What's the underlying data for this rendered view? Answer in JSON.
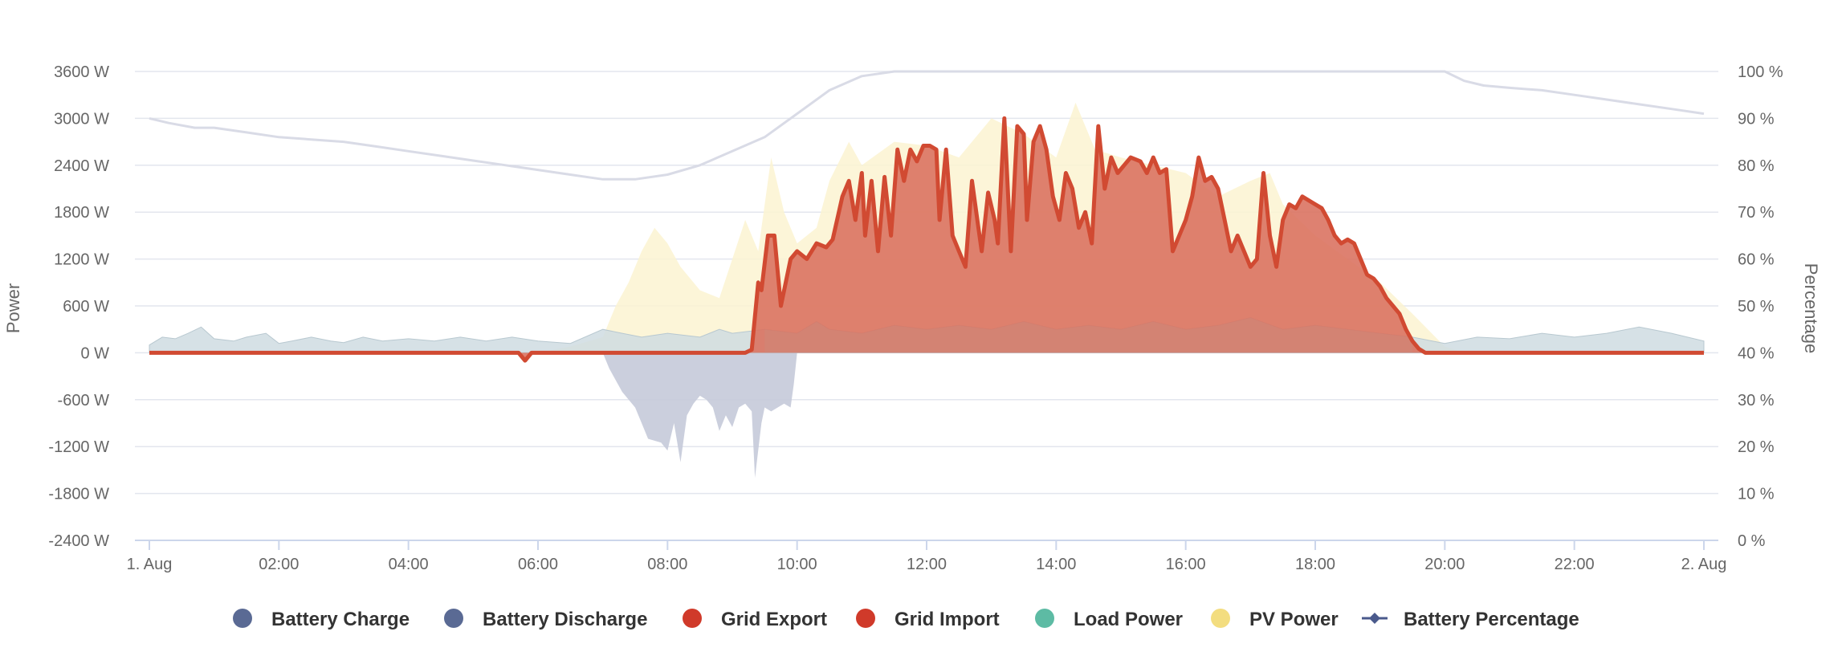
{
  "chart_data": {
    "type": "area",
    "x_axis": {
      "start": "1. Aug 00:00",
      "end": "2. Aug 00:00",
      "tick_labels": [
        "1. Aug",
        "02:00",
        "04:00",
        "06:00",
        "08:00",
        "10:00",
        "12:00",
        "14:00",
        "16:00",
        "18:00",
        "20:00",
        "22:00",
        "2. Aug"
      ],
      "tick_hours": [
        0,
        2,
        4,
        6,
        8,
        10,
        12,
        14,
        16,
        18,
        20,
        22,
        24
      ]
    },
    "y_axis_left": {
      "title": "Power",
      "unit": "W",
      "range": [
        -2400,
        3600
      ],
      "tick_labels": [
        "3600 W",
        "3000 W",
        "2400 W",
        "1800 W",
        "1200 W",
        "600 W",
        "0 W",
        "-600 W",
        "-1200 W",
        "-1800 W",
        "-2400 W"
      ],
      "tick_values": [
        3600,
        3000,
        2400,
        1800,
        1200,
        600,
        0,
        -600,
        -1200,
        -1800,
        -2400
      ]
    },
    "y_axis_right": {
      "title": "Percentage",
      "unit": "%",
      "range": [
        0,
        100
      ],
      "tick_labels": [
        "100 %",
        "90 %",
        "80 %",
        "70 %",
        "60 %",
        "50 %",
        "40 %",
        "30 %",
        "20 %",
        "10 %",
        "0 %"
      ],
      "tick_values": [
        100,
        90,
        80,
        70,
        60,
        50,
        40,
        30,
        20,
        10,
        0
      ]
    },
    "grid": true,
    "legend_position": "bottom",
    "legend": [
      {
        "name": "Battery Charge",
        "color": "#5a6a94",
        "symbol": "circle"
      },
      {
        "name": "Battery Discharge",
        "color": "#5a6a94",
        "symbol": "circle"
      },
      {
        "name": "Grid Export",
        "color": "#d03a2a",
        "symbol": "circle",
        "bold": true
      },
      {
        "name": "Grid Import",
        "color": "#d03a2a",
        "symbol": "circle"
      },
      {
        "name": "Load Power",
        "color": "#5dbba4",
        "symbol": "circle"
      },
      {
        "name": "PV Power",
        "color": "#f3dd7f",
        "symbol": "circle"
      },
      {
        "name": "Battery Percentage",
        "color": "#4a5a8c",
        "symbol": "line-diamond"
      }
    ],
    "series": [
      {
        "name": "Battery Charge / Discharge",
        "color": "#c5cad9",
        "axis": "left",
        "points": [
          [
            7.0,
            0
          ],
          [
            7.1,
            -200
          ],
          [
            7.3,
            -500
          ],
          [
            7.5,
            -700
          ],
          [
            7.6,
            -900
          ],
          [
            7.7,
            -1100
          ],
          [
            7.9,
            -1150
          ],
          [
            8.0,
            -1250
          ],
          [
            8.1,
            -900
          ],
          [
            8.2,
            -1400
          ],
          [
            8.3,
            -800
          ],
          [
            8.4,
            -650
          ],
          [
            8.5,
            -550
          ],
          [
            8.6,
            -600
          ],
          [
            8.7,
            -700
          ],
          [
            8.8,
            -1000
          ],
          [
            8.9,
            -800
          ],
          [
            9.0,
            -950
          ],
          [
            9.1,
            -700
          ],
          [
            9.2,
            -650
          ],
          [
            9.3,
            -750
          ],
          [
            9.35,
            -1600
          ],
          [
            9.45,
            -900
          ],
          [
            9.5,
            -700
          ],
          [
            9.6,
            -750
          ],
          [
            9.7,
            -700
          ],
          [
            9.8,
            -650
          ],
          [
            9.9,
            -700
          ],
          [
            9.95,
            -400
          ],
          [
            10.0,
            0
          ]
        ]
      },
      {
        "name": "Load Power",
        "color": "#cfdce2",
        "axis": "left",
        "points": [
          [
            0,
            100
          ],
          [
            0.2,
            200
          ],
          [
            0.4,
            180
          ],
          [
            0.6,
            250
          ],
          [
            0.8,
            330
          ],
          [
            1.0,
            180
          ],
          [
            1.3,
            150
          ],
          [
            1.5,
            200
          ],
          [
            1.8,
            250
          ],
          [
            2.0,
            120
          ],
          [
            2.2,
            150
          ],
          [
            2.5,
            200
          ],
          [
            2.8,
            150
          ],
          [
            3.0,
            130
          ],
          [
            3.3,
            200
          ],
          [
            3.6,
            150
          ],
          [
            4.0,
            180
          ],
          [
            4.4,
            150
          ],
          [
            4.8,
            200
          ],
          [
            5.2,
            150
          ],
          [
            5.6,
            200
          ],
          [
            6.0,
            150
          ],
          [
            6.5,
            120
          ],
          [
            7.0,
            300
          ],
          [
            7.3,
            250
          ],
          [
            7.6,
            200
          ],
          [
            8.0,
            250
          ],
          [
            8.5,
            200
          ],
          [
            8.8,
            300
          ],
          [
            9.0,
            250
          ],
          [
            9.5,
            300
          ],
          [
            10.0,
            250
          ],
          [
            10.3,
            400
          ],
          [
            10.5,
            300
          ],
          [
            11.0,
            250
          ],
          [
            11.5,
            350
          ],
          [
            12.0,
            300
          ],
          [
            12.5,
            350
          ],
          [
            13.0,
            300
          ],
          [
            13.5,
            400
          ],
          [
            14.0,
            300
          ],
          [
            14.5,
            350
          ],
          [
            15.0,
            300
          ],
          [
            15.5,
            400
          ],
          [
            16.0,
            300
          ],
          [
            16.5,
            350
          ],
          [
            17.0,
            450
          ],
          [
            17.5,
            300
          ],
          [
            18.0,
            350
          ],
          [
            18.5,
            300
          ],
          [
            19.0,
            250
          ],
          [
            19.5,
            200
          ],
          [
            20.0,
            120
          ],
          [
            20.5,
            200
          ],
          [
            21.0,
            180
          ],
          [
            21.5,
            250
          ],
          [
            22.0,
            200
          ],
          [
            22.5,
            250
          ],
          [
            23.0,
            330
          ],
          [
            23.5,
            250
          ],
          [
            24.0,
            150
          ]
        ]
      },
      {
        "name": "PV Power",
        "color": "#fbf3d1",
        "axis": "left",
        "points": [
          [
            6.0,
            0
          ],
          [
            6.5,
            80
          ],
          [
            7.0,
            200
          ],
          [
            7.2,
            600
          ],
          [
            7.4,
            900
          ],
          [
            7.6,
            1300
          ],
          [
            7.8,
            1600
          ],
          [
            8.0,
            1400
          ],
          [
            8.2,
            1100
          ],
          [
            8.5,
            800
          ],
          [
            8.8,
            700
          ],
          [
            9.0,
            1200
          ],
          [
            9.2,
            1700
          ],
          [
            9.4,
            1300
          ],
          [
            9.6,
            2500
          ],
          [
            9.8,
            1800
          ],
          [
            10.0,
            1400
          ],
          [
            10.3,
            1600
          ],
          [
            10.5,
            2200
          ],
          [
            10.8,
            2700
          ],
          [
            11.0,
            2400
          ],
          [
            11.5,
            2700
          ],
          [
            12.0,
            2650
          ],
          [
            12.5,
            2500
          ],
          [
            13.0,
            3000
          ],
          [
            13.5,
            2800
          ],
          [
            14.0,
            2500
          ],
          [
            14.3,
            3200
          ],
          [
            14.6,
            2600
          ],
          [
            15.0,
            2500
          ],
          [
            15.5,
            2400
          ],
          [
            16.0,
            2300
          ],
          [
            16.5,
            2000
          ],
          [
            17.0,
            2200
          ],
          [
            17.3,
            2300
          ],
          [
            17.5,
            1900
          ],
          [
            18.0,
            1500
          ],
          [
            18.5,
            1200
          ],
          [
            19.0,
            900
          ],
          [
            19.5,
            500
          ],
          [
            20.0,
            80
          ],
          [
            20.3,
            0
          ]
        ]
      },
      {
        "name": "Grid Export",
        "color": "#d64b38",
        "axis": "left",
        "points": [
          [
            0,
            0
          ],
          [
            5.7,
            0
          ],
          [
            5.8,
            -100
          ],
          [
            5.9,
            0
          ],
          [
            9.2,
            0
          ],
          [
            9.3,
            40
          ],
          [
            9.4,
            900
          ],
          [
            9.45,
            800
          ],
          [
            9.55,
            1500
          ],
          [
            9.65,
            1500
          ],
          [
            9.75,
            600
          ],
          [
            9.9,
            1200
          ],
          [
            10.0,
            1300
          ],
          [
            10.15,
            1200
          ],
          [
            10.3,
            1400
          ],
          [
            10.45,
            1350
          ],
          [
            10.55,
            1450
          ],
          [
            10.7,
            2000
          ],
          [
            10.8,
            2200
          ],
          [
            10.9,
            1700
          ],
          [
            11.0,
            2300
          ],
          [
            11.05,
            1500
          ],
          [
            11.15,
            2200
          ],
          [
            11.25,
            1300
          ],
          [
            11.35,
            2250
          ],
          [
            11.45,
            1500
          ],
          [
            11.55,
            2600
          ],
          [
            11.65,
            2200
          ],
          [
            11.75,
            2600
          ],
          [
            11.85,
            2450
          ],
          [
            11.95,
            2650
          ],
          [
            12.05,
            2650
          ],
          [
            12.15,
            2600
          ],
          [
            12.2,
            1700
          ],
          [
            12.3,
            2600
          ],
          [
            12.4,
            1500
          ],
          [
            12.5,
            1300
          ],
          [
            12.6,
            1100
          ],
          [
            12.7,
            2200
          ],
          [
            12.8,
            1600
          ],
          [
            12.85,
            1300
          ],
          [
            12.95,
            2050
          ],
          [
            13.05,
            1700
          ],
          [
            13.1,
            1400
          ],
          [
            13.2,
            3000
          ],
          [
            13.3,
            1300
          ],
          [
            13.4,
            2900
          ],
          [
            13.5,
            2800
          ],
          [
            13.55,
            1700
          ],
          [
            13.65,
            2700
          ],
          [
            13.75,
            2900
          ],
          [
            13.85,
            2600
          ],
          [
            13.95,
            2000
          ],
          [
            14.05,
            1700
          ],
          [
            14.15,
            2300
          ],
          [
            14.25,
            2100
          ],
          [
            14.35,
            1600
          ],
          [
            14.45,
            1800
          ],
          [
            14.55,
            1400
          ],
          [
            14.65,
            2900
          ],
          [
            14.75,
            2100
          ],
          [
            14.85,
            2500
          ],
          [
            14.95,
            2300
          ],
          [
            15.05,
            2400
          ],
          [
            15.15,
            2500
          ],
          [
            15.3,
            2450
          ],
          [
            15.4,
            2300
          ],
          [
            15.5,
            2500
          ],
          [
            15.6,
            2300
          ],
          [
            15.7,
            2350
          ],
          [
            15.8,
            1300
          ],
          [
            15.9,
            1500
          ],
          [
            16.0,
            1700
          ],
          [
            16.1,
            2000
          ],
          [
            16.2,
            2500
          ],
          [
            16.3,
            2200
          ],
          [
            16.4,
            2250
          ],
          [
            16.5,
            2100
          ],
          [
            16.6,
            1700
          ],
          [
            16.7,
            1300
          ],
          [
            16.8,
            1500
          ],
          [
            16.9,
            1300
          ],
          [
            17.0,
            1100
          ],
          [
            17.1,
            1200
          ],
          [
            17.2,
            2300
          ],
          [
            17.3,
            1500
          ],
          [
            17.4,
            1100
          ],
          [
            17.5,
            1700
          ],
          [
            17.6,
            1900
          ],
          [
            17.7,
            1850
          ],
          [
            17.8,
            2000
          ],
          [
            17.9,
            1950
          ],
          [
            18.0,
            1900
          ],
          [
            18.1,
            1850
          ],
          [
            18.2,
            1700
          ],
          [
            18.3,
            1500
          ],
          [
            18.4,
            1400
          ],
          [
            18.5,
            1450
          ],
          [
            18.6,
            1400
          ],
          [
            18.7,
            1200
          ],
          [
            18.8,
            1000
          ],
          [
            18.9,
            950
          ],
          [
            19.0,
            850
          ],
          [
            19.1,
            700
          ],
          [
            19.2,
            600
          ],
          [
            19.3,
            500
          ],
          [
            19.4,
            300
          ],
          [
            19.5,
            150
          ],
          [
            19.6,
            50
          ],
          [
            19.7,
            0
          ],
          [
            24,
            0
          ]
        ]
      },
      {
        "name": "Battery Percentage",
        "color": "#d9dbe6",
        "axis": "right",
        "points": [
          [
            0,
            90
          ],
          [
            0.3,
            89
          ],
          [
            0.7,
            88
          ],
          [
            1.0,
            88
          ],
          [
            1.5,
            87
          ],
          [
            2.0,
            86
          ],
          [
            2.5,
            85.5
          ],
          [
            3.0,
            85
          ],
          [
            3.5,
            84
          ],
          [
            4.0,
            83
          ],
          [
            4.5,
            82
          ],
          [
            5.0,
            81
          ],
          [
            5.5,
            80
          ],
          [
            6.0,
            79
          ],
          [
            6.5,
            78
          ],
          [
            7.0,
            77
          ],
          [
            7.5,
            77
          ],
          [
            8.0,
            78
          ],
          [
            8.5,
            80
          ],
          [
            9.0,
            83
          ],
          [
            9.5,
            86
          ],
          [
            10.0,
            91
          ],
          [
            10.5,
            96
          ],
          [
            11.0,
            99
          ],
          [
            11.5,
            100
          ],
          [
            20.0,
            100
          ],
          [
            20.3,
            98
          ],
          [
            20.6,
            97
          ],
          [
            21.0,
            96.5
          ],
          [
            21.5,
            96
          ],
          [
            22.0,
            95
          ],
          [
            22.5,
            94
          ],
          [
            23.0,
            93
          ],
          [
            23.5,
            92
          ],
          [
            24.0,
            91
          ]
        ]
      }
    ]
  }
}
